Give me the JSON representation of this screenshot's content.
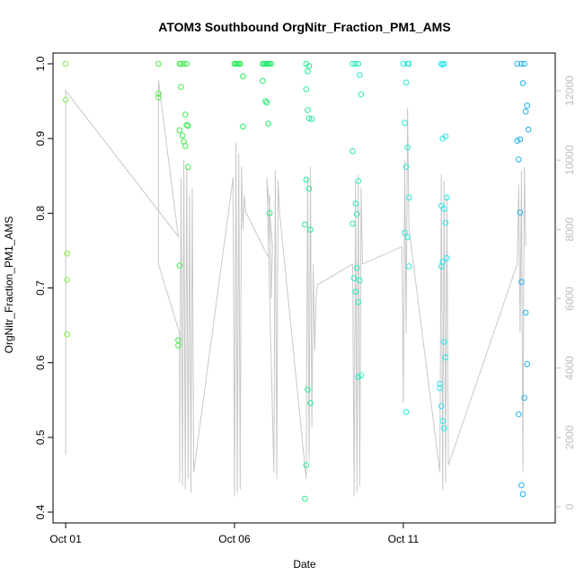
{
  "chart_data": {
    "type": "scatter",
    "title": "ATOM3 Southbound OrgNitr_Fraction_PM1_AMS",
    "xlabel": "Date",
    "ylabel": "OrgNitr_Fraction_PM1_AMS",
    "xlim": [
      "2017-09-30T15:00",
      "2017-10-15T12:00"
    ],
    "ylim": [
      0.4,
      1.0
    ],
    "y2lim": [
      0,
      12400
    ],
    "x_ticks": [
      {
        "value": "2017-10-01",
        "label": "Oct 01"
      },
      {
        "value": "2017-10-06",
        "label": "Oct 06"
      },
      {
        "value": "2017-10-11",
        "label": "Oct 11"
      }
    ],
    "y_ticks": [
      {
        "value": 0.4,
        "label": "0.4"
      },
      {
        "value": 0.5,
        "label": "0.5"
      },
      {
        "value": 0.6,
        "label": "0.6"
      },
      {
        "value": 0.7,
        "label": "0.7"
      },
      {
        "value": 0.8,
        "label": "0.8"
      },
      {
        "value": 0.9,
        "label": "0.9"
      },
      {
        "value": 1.0,
        "label": "1.0"
      }
    ],
    "y2_ticks": [
      {
        "value": 0,
        "label": "0"
      },
      {
        "value": 2000,
        "label": "2000"
      },
      {
        "value": 4000,
        "label": "4000"
      },
      {
        "value": 6000,
        "label": "6000"
      },
      {
        "value": 8000,
        "label": "8000"
      },
      {
        "value": 10000,
        "label": "10000"
      },
      {
        "value": 12000,
        "label": "12000"
      }
    ],
    "grid": false,
    "legend": "none",
    "colors": {
      "line": "#c8c8c8",
      "axis": "#000000",
      "right_axis": "#bdbdbd"
    },
    "altitude_line": [
      [
        "2017-10-01T00:00",
        1500
      ],
      [
        "2017-10-01T00:00",
        12000
      ],
      [
        "2017-10-04T08:00",
        7800
      ],
      [
        "2017-10-03T18:00",
        12300
      ],
      [
        "2017-10-03T18:00",
        7000
      ],
      [
        "2017-10-04T09:00",
        5000
      ],
      [
        "2017-10-04T09:00",
        700
      ],
      [
        "2017-10-04T10:00",
        9500
      ],
      [
        "2017-10-04T11:00",
        600
      ],
      [
        "2017-10-04T12:00",
        10000
      ],
      [
        "2017-10-04T13:00",
        500
      ],
      [
        "2017-10-04T14:00",
        9800
      ],
      [
        "2017-10-04T15:00",
        800
      ],
      [
        "2017-10-04T16:00",
        9000
      ],
      [
        "2017-10-04T17:00",
        400
      ],
      [
        "2017-10-04T18:00",
        9200
      ],
      [
        "2017-10-04T19:00",
        1000
      ],
      [
        "2017-10-05T23:00",
        9500
      ],
      [
        "2017-10-06T00:00",
        300
      ],
      [
        "2017-10-06T01:00",
        10500
      ],
      [
        "2017-10-06T02:00",
        400
      ],
      [
        "2017-10-06T03:00",
        10200
      ],
      [
        "2017-10-06T04:00",
        500
      ],
      [
        "2017-10-06T05:00",
        9800
      ],
      [
        "2017-10-06T06:00",
        8000
      ],
      [
        "2017-10-06T07:00",
        9000
      ],
      [
        "2017-10-06T08:00",
        8500
      ],
      [
        "2017-10-07T00:00",
        7200
      ],
      [
        "2017-10-07T01:00",
        9000
      ],
      [
        "2017-10-07T02:00",
        6000
      ],
      [
        "2017-10-07T03:00",
        7500
      ],
      [
        "2017-10-06T23:00",
        9500
      ],
      [
        "2017-10-07T04:00",
        1000
      ],
      [
        "2017-10-07T05:00",
        9700
      ],
      [
        "2017-10-07T06:00",
        800
      ],
      [
        "2017-10-07T07:00",
        9400
      ],
      [
        "2017-10-07T08:00",
        8500
      ],
      [
        "2017-10-08T03:00",
        800
      ],
      [
        "2017-10-08T04:00",
        9500
      ],
      [
        "2017-10-08T05:00",
        1300
      ],
      [
        "2017-10-08T06:00",
        9800
      ],
      [
        "2017-10-08T07:00",
        2300
      ],
      [
        "2017-10-08T08:00",
        7000
      ],
      [
        "2017-10-08T09:00",
        4500
      ],
      [
        "2017-10-08T10:00",
        6000
      ],
      [
        "2017-10-08T11:00",
        6400
      ],
      [
        "2017-10-09T12:00",
        7000
      ],
      [
        "2017-10-09T13:00",
        300
      ],
      [
        "2017-10-09T14:00",
        9400
      ],
      [
        "2017-10-09T15:00",
        400
      ],
      [
        "2017-10-09T16:00",
        9600
      ],
      [
        "2017-10-09T17:00",
        600
      ],
      [
        "2017-10-09T18:00",
        9200
      ],
      [
        "2017-10-09T19:00",
        7000
      ],
      [
        "2017-10-10T23:00",
        7500
      ],
      [
        "2017-10-11T00:00",
        3000
      ],
      [
        "2017-10-11T01:00",
        10000
      ],
      [
        "2017-10-11T02:00",
        5000
      ],
      [
        "2017-10-11T03:00",
        11500
      ],
      [
        "2017-10-11T04:00",
        8000
      ],
      [
        "2017-10-12T02:00",
        1000
      ],
      [
        "2017-10-12T03:00",
        9600
      ],
      [
        "2017-10-12T04:00",
        500
      ],
      [
        "2017-10-12T05:00",
        9400
      ],
      [
        "2017-10-12T06:00",
        700
      ],
      [
        "2017-10-12T07:00",
        9000
      ],
      [
        "2017-10-12T08:00",
        1200
      ],
      [
        "2017-10-14T09:00",
        7000
      ],
      [
        "2017-10-14T10:00",
        9300
      ],
      [
        "2017-10-14T11:00",
        5000
      ],
      [
        "2017-10-14T12:00",
        9700
      ],
      [
        "2017-10-14T13:00",
        1000
      ],
      [
        "2017-10-14T14:00",
        9800
      ],
      [
        "2017-10-14T15:00",
        7500
      ]
    ],
    "points": [
      [
        "2017-10-01T00:00",
        1.0
      ],
      [
        "2017-10-01T00:00",
        0.952
      ],
      [
        "2017-10-01T01:00",
        0.746
      ],
      [
        "2017-10-01T01:00",
        0.711
      ],
      [
        "2017-10-01T01:00",
        0.638
      ],
      [
        "2017-10-03T18:00",
        1.0
      ],
      [
        "2017-10-03T18:00",
        0.96
      ],
      [
        "2017-10-03T18:00",
        0.955
      ],
      [
        "2017-10-04T09:00",
        1.0
      ],
      [
        "2017-10-04T10:00",
        1.0
      ],
      [
        "2017-10-04T12:00",
        1.0
      ],
      [
        "2017-10-04T14:00",
        1.0
      ],
      [
        "2017-10-04T10:00",
        0.969
      ],
      [
        "2017-10-04T13:00",
        0.932
      ],
      [
        "2017-10-04T14:00",
        0.918
      ],
      [
        "2017-10-04T15:00",
        0.917
      ],
      [
        "2017-10-04T09:00",
        0.911
      ],
      [
        "2017-10-04T11:00",
        0.904
      ],
      [
        "2017-10-04T12:00",
        0.896
      ],
      [
        "2017-10-04T13:00",
        0.89
      ],
      [
        "2017-10-04T15:00",
        0.862
      ],
      [
        "2017-10-04T09:00",
        0.73
      ],
      [
        "2017-10-04T08:00",
        0.63
      ],
      [
        "2017-10-04T08:00",
        0.623
      ],
      [
        "2017-10-06T00:00",
        1.0
      ],
      [
        "2017-10-06T01:00",
        1.0
      ],
      [
        "2017-10-06T02:00",
        1.0
      ],
      [
        "2017-10-06T03:00",
        1.0
      ],
      [
        "2017-10-06T04:00",
        1.0
      ],
      [
        "2017-10-06T06:00",
        0.983
      ],
      [
        "2017-10-06T06:00",
        0.916
      ],
      [
        "2017-10-06T20:00",
        1.0
      ],
      [
        "2017-10-06T21:00",
        1.0
      ],
      [
        "2017-10-06T22:00",
        1.0
      ],
      [
        "2017-10-06T23:00",
        1.0
      ],
      [
        "2017-10-07T00:00",
        1.0
      ],
      [
        "2017-10-07T01:00",
        1.0
      ],
      [
        "2017-10-07T02:00",
        1.0
      ],
      [
        "2017-10-06T20:00",
        0.977
      ],
      [
        "2017-10-06T22:00",
        0.95
      ],
      [
        "2017-10-06T23:00",
        0.948
      ],
      [
        "2017-10-07T00:00",
        0.92
      ],
      [
        "2017-10-07T01:00",
        0.8
      ],
      [
        "2017-10-08T03:00",
        1.0
      ],
      [
        "2017-10-08T05:00",
        0.997
      ],
      [
        "2017-10-08T04:00",
        0.99
      ],
      [
        "2017-10-08T03:00",
        0.966
      ],
      [
        "2017-10-08T04:00",
        0.938
      ],
      [
        "2017-10-08T05:00",
        0.927
      ],
      [
        "2017-10-08T07:00",
        0.926
      ],
      [
        "2017-10-08T03:00",
        0.845
      ],
      [
        "2017-10-08T05:00",
        0.833
      ],
      [
        "2017-10-08T02:00",
        0.785
      ],
      [
        "2017-10-08T06:00",
        0.778
      ],
      [
        "2017-10-08T04:00",
        0.564
      ],
      [
        "2017-10-08T06:00",
        0.546
      ],
      [
        "2017-10-08T03:00",
        0.463
      ],
      [
        "2017-10-08T02:00",
        0.418
      ],
      [
        "2017-10-09T12:00",
        1.0
      ],
      [
        "2017-10-09T14:00",
        1.0
      ],
      [
        "2017-10-09T16:00",
        1.0
      ],
      [
        "2017-10-09T17:00",
        0.985
      ],
      [
        "2017-10-09T18:00",
        0.959
      ],
      [
        "2017-10-09T12:00",
        0.883
      ],
      [
        "2017-10-09T16:00",
        0.843
      ],
      [
        "2017-10-09T14:00",
        0.813
      ],
      [
        "2017-10-09T15:00",
        0.799
      ],
      [
        "2017-10-09T12:00",
        0.786
      ],
      [
        "2017-10-09T15:00",
        0.727
      ],
      [
        "2017-10-09T13:00",
        0.713
      ],
      [
        "2017-10-09T17:00",
        0.71
      ],
      [
        "2017-10-09T14:00",
        0.695
      ],
      [
        "2017-10-09T16:00",
        0.681
      ],
      [
        "2017-10-09T18:00",
        0.583
      ],
      [
        "2017-10-09T16:00",
        0.581
      ],
      [
        "2017-10-11T00:00",
        1.0
      ],
      [
        "2017-10-11T03:00",
        1.0
      ],
      [
        "2017-10-11T04:00",
        1.0
      ],
      [
        "2017-10-11T02:00",
        0.975
      ],
      [
        "2017-10-11T01:00",
        0.921
      ],
      [
        "2017-10-11T03:00",
        0.888
      ],
      [
        "2017-10-11T02:00",
        0.862
      ],
      [
        "2017-10-11T04:00",
        0.821
      ],
      [
        "2017-10-11T01:00",
        0.774
      ],
      [
        "2017-10-11T03:00",
        0.768
      ],
      [
        "2017-10-11T04:00",
        0.729
      ],
      [
        "2017-10-11T02:00",
        0.534
      ],
      [
        "2017-10-12T03:00",
        1.0
      ],
      [
        "2017-10-12T04:00",
        0.999
      ],
      [
        "2017-10-12T05:00",
        1.0
      ],
      [
        "2017-10-12T06:00",
        0.903
      ],
      [
        "2017-10-12T04:00",
        0.9
      ],
      [
        "2017-10-12T07:00",
        0.821
      ],
      [
        "2017-10-12T03:00",
        0.81
      ],
      [
        "2017-10-12T05:00",
        0.806
      ],
      [
        "2017-10-12T06:00",
        0.787
      ],
      [
        "2017-10-12T07:00",
        0.74
      ],
      [
        "2017-10-12T04:00",
        0.735
      ],
      [
        "2017-10-12T03:00",
        0.729
      ],
      [
        "2017-10-12T05:00",
        0.628
      ],
      [
        "2017-10-12T06:00",
        0.607
      ],
      [
        "2017-10-12T02:00",
        0.572
      ],
      [
        "2017-10-12T02:00",
        0.566
      ],
      [
        "2017-10-12T03:00",
        0.542
      ],
      [
        "2017-10-12T04:00",
        0.522
      ],
      [
        "2017-10-12T05:00",
        0.512
      ],
      [
        "2017-10-14T09:00",
        1.0
      ],
      [
        "2017-10-14T12:00",
        1.0
      ],
      [
        "2017-10-14T14:00",
        1.0
      ],
      [
        "2017-10-14T13:00",
        0.974
      ],
      [
        "2017-10-14T16:00",
        0.944
      ],
      [
        "2017-10-14T15:00",
        0.936
      ],
      [
        "2017-10-14T17:00",
        0.912
      ],
      [
        "2017-10-14T11:00",
        0.899
      ],
      [
        "2017-10-14T09:00",
        0.897
      ],
      [
        "2017-10-14T10:00",
        0.872
      ],
      [
        "2017-10-14T11:00",
        0.801
      ],
      [
        "2017-10-14T12:00",
        0.708
      ],
      [
        "2017-10-14T15:00",
        0.667
      ],
      [
        "2017-10-14T16:00",
        0.598
      ],
      [
        "2017-10-14T14:00",
        0.553
      ],
      [
        "2017-10-14T10:00",
        0.531
      ],
      [
        "2017-10-14T12:00",
        0.436
      ],
      [
        "2017-10-14T13:00",
        0.424
      ]
    ]
  }
}
